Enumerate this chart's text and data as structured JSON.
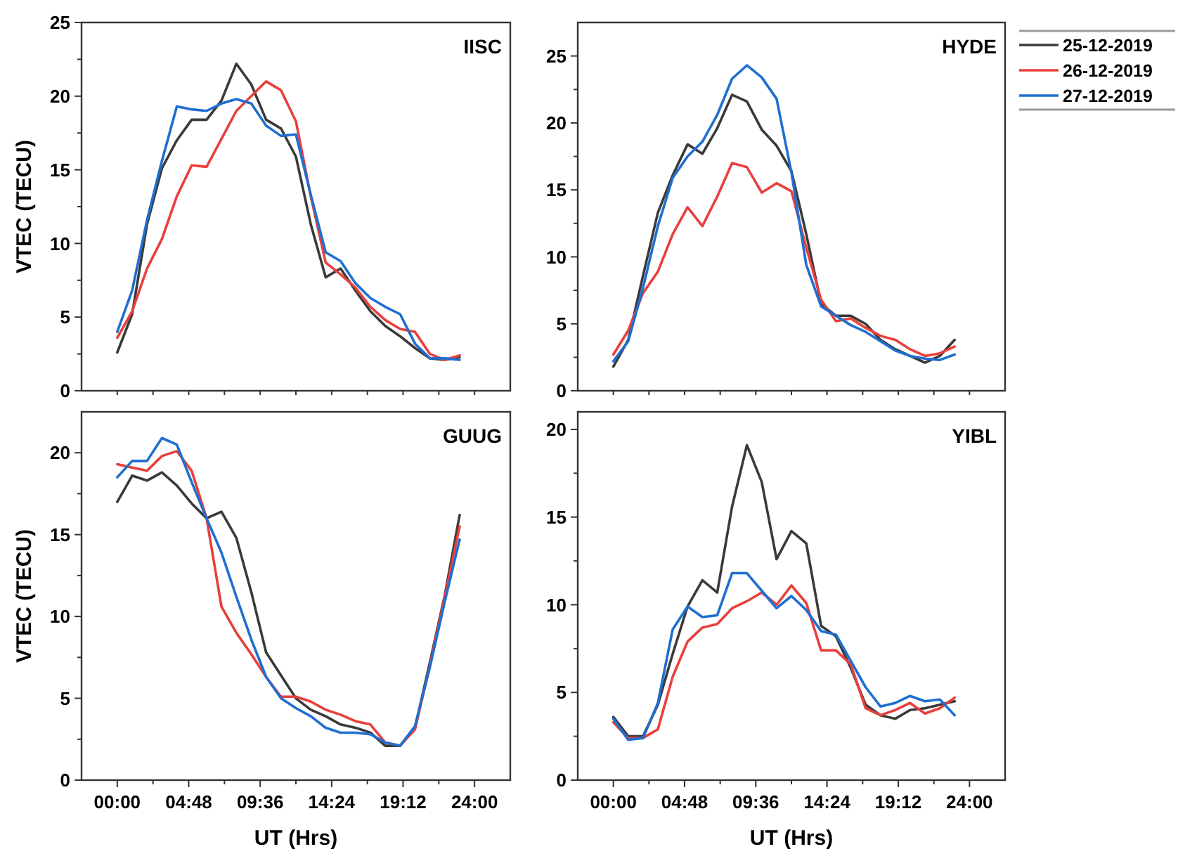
{
  "chart_data": [
    {
      "type": "line",
      "title": "IISC",
      "ylabel": "VTEC (TECU)",
      "x": [
        0,
        1,
        2,
        3,
        4,
        5,
        6,
        7,
        8,
        9,
        10,
        11,
        12,
        13,
        14,
        15,
        16,
        17,
        18,
        19,
        20,
        21,
        22,
        23
      ],
      "xlim": [
        -2.4,
        26.4
      ],
      "ylim": [
        0,
        25
      ],
      "xticks": [
        {
          "value": 0,
          "label": null
        },
        {
          "value": 2.4,
          "label": null
        },
        {
          "value": 4.8,
          "label": null
        },
        {
          "value": 7.2,
          "label": null
        },
        {
          "value": 9.6,
          "label": null
        },
        {
          "value": 12,
          "label": null
        },
        {
          "value": 14.4,
          "label": null
        },
        {
          "value": 16.8,
          "label": null
        },
        {
          "value": 19.2,
          "label": null
        },
        {
          "value": 21.6,
          "label": null
        },
        {
          "value": 24,
          "label": null
        }
      ],
      "yticks": [
        0,
        {
          "value": 2.5,
          "label": null
        },
        5,
        {
          "value": 7.5,
          "label": null
        },
        10,
        {
          "value": 12.5,
          "label": null
        },
        15,
        {
          "value": 17.5,
          "label": null
        },
        20,
        {
          "value": 22.5,
          "label": null
        },
        25
      ],
      "tick_labels": "y",
      "grid": false,
      "legend": false,
      "series": [
        {
          "color": "#3a3a3a",
          "values": [
            2.6,
            5.2,
            11.3,
            15.1,
            17.0,
            18.4,
            18.4,
            19.7,
            22.2,
            20.8,
            18.4,
            17.8,
            15.9,
            11.3,
            7.7,
            8.3,
            6.8,
            5.4,
            4.4,
            3.7,
            2.9,
            2.2,
            2.1,
            2.3
          ]
        },
        {
          "color": "#e8403c",
          "values": [
            3.6,
            5.4,
            8.3,
            10.3,
            13.2,
            15.3,
            15.2,
            17.1,
            19.0,
            20.0,
            21.0,
            20.4,
            18.3,
            13.2,
            8.7,
            7.9,
            7.0,
            5.7,
            4.8,
            4.2,
            4.0,
            2.5,
            2.1,
            2.4
          ]
        },
        {
          "color": "#1f6fd0",
          "values": [
            4.0,
            6.8,
            11.6,
            15.6,
            19.3,
            19.1,
            19.0,
            19.5,
            19.8,
            19.5,
            18.0,
            17.3,
            17.4,
            13.3,
            9.4,
            8.8,
            7.3,
            6.3,
            5.7,
            5.2,
            3.2,
            2.2,
            2.2,
            2.1
          ]
        }
      ]
    },
    {
      "type": "line",
      "title": "HYDE",
      "x": [
        0,
        1,
        2,
        3,
        4,
        5,
        6,
        7,
        8,
        9,
        10,
        11,
        12,
        13,
        14,
        15,
        16,
        17,
        18,
        19,
        20,
        21,
        22,
        23
      ],
      "xlim": [
        -2.4,
        26.4
      ],
      "ylim": [
        0,
        27.5
      ],
      "xticks": [
        {
          "value": 0,
          "label": null
        },
        {
          "value": 2.4,
          "label": null
        },
        {
          "value": 4.8,
          "label": null
        },
        {
          "value": 7.2,
          "label": null
        },
        {
          "value": 9.6,
          "label": null
        },
        {
          "value": 12,
          "label": null
        },
        {
          "value": 14.4,
          "label": null
        },
        {
          "value": 16.8,
          "label": null
        },
        {
          "value": 19.2,
          "label": null
        },
        {
          "value": 21.6,
          "label": null
        },
        {
          "value": 24,
          "label": null
        }
      ],
      "yticks": [
        0,
        {
          "value": 2.5,
          "label": null
        },
        5,
        {
          "value": 7.5,
          "label": null
        },
        10,
        {
          "value": 12.5,
          "label": null
        },
        15,
        {
          "value": 17.5,
          "label": null
        },
        20,
        {
          "value": 22.5,
          "label": null
        },
        25
      ],
      "tick_labels": "y",
      "grid": false,
      "legend": "right",
      "series": [
        {
          "name": "25-12-2019",
          "color": "#3a3a3a",
          "values": [
            1.8,
            3.8,
            8.6,
            13.3,
            16.1,
            18.4,
            17.7,
            19.6,
            22.1,
            21.6,
            19.5,
            18.3,
            16.4,
            11.7,
            6.5,
            5.6,
            5.6,
            5.0,
            3.8,
            3.1,
            2.6,
            2.1,
            2.6,
            3.8
          ]
        },
        {
          "name": "26-12-2019",
          "color": "#e8403c",
          "values": [
            2.7,
            4.5,
            7.3,
            8.9,
            11.7,
            13.7,
            12.3,
            14.5,
            17.0,
            16.7,
            14.8,
            15.5,
            14.9,
            10.7,
            6.8,
            5.2,
            5.4,
            4.7,
            4.1,
            3.8,
            3.1,
            2.6,
            2.8,
            3.3
          ]
        },
        {
          "name": "27-12-2019",
          "color": "#1f6fd0",
          "values": [
            2.2,
            3.7,
            7.7,
            12.3,
            15.9,
            17.5,
            18.6,
            20.6,
            23.3,
            24.3,
            23.4,
            21.8,
            16.3,
            9.4,
            6.3,
            5.6,
            4.9,
            4.4,
            3.7,
            3.0,
            2.6,
            2.4,
            2.3,
            2.7
          ]
        }
      ]
    },
    {
      "type": "line",
      "title": "GUUG",
      "xlabel": "UT (Hrs)",
      "ylabel": "VTEC (TECU)",
      "x": [
        0,
        1,
        2,
        3,
        4,
        5,
        6,
        7,
        8,
        9,
        10,
        11,
        12,
        13,
        14,
        15,
        16,
        17,
        18,
        19,
        20,
        21,
        22,
        23
      ],
      "xlim": [
        -2.4,
        26.4
      ],
      "ylim": [
        0,
        22.5
      ],
      "xticks": [
        {
          "value": 0,
          "label": "00:00"
        },
        {
          "value": 2.4,
          "label": null
        },
        {
          "value": 4.8,
          "label": "04:48"
        },
        {
          "value": 7.2,
          "label": null
        },
        {
          "value": 9.6,
          "label": "09:36"
        },
        {
          "value": 12,
          "label": null
        },
        {
          "value": 14.4,
          "label": "14:24"
        },
        {
          "value": 16.8,
          "label": null
        },
        {
          "value": 19.2,
          "label": "19:12"
        },
        {
          "value": 21.6,
          "label": null
        },
        {
          "value": 24,
          "label": "24:00"
        }
      ],
      "yticks": [
        0,
        {
          "value": 2.5,
          "label": null
        },
        5,
        {
          "value": 7.5,
          "label": null
        },
        10,
        {
          "value": 12.5,
          "label": null
        },
        15,
        {
          "value": 17.5,
          "label": null
        },
        20
      ],
      "grid": false,
      "legend": false,
      "series": [
        {
          "color": "#3a3a3a",
          "values": [
            17.0,
            18.6,
            18.3,
            18.8,
            18.0,
            16.9,
            16.0,
            16.4,
            14.8,
            11.5,
            7.8,
            6.4,
            5.0,
            4.3,
            3.9,
            3.4,
            3.2,
            2.9,
            2.1,
            2.1,
            3.2,
            7.2,
            11.3,
            16.2
          ]
        },
        {
          "color": "#e8403c",
          "values": [
            19.3,
            19.1,
            18.9,
            19.8,
            20.1,
            18.9,
            16.0,
            10.6,
            9.0,
            7.7,
            6.3,
            5.1,
            5.1,
            4.8,
            4.3,
            4.0,
            3.6,
            3.4,
            2.3,
            2.1,
            3.1,
            7.0,
            11.2,
            15.5
          ]
        },
        {
          "color": "#1f6fd0",
          "values": [
            18.5,
            19.5,
            19.5,
            20.9,
            20.5,
            18.2,
            16.0,
            13.9,
            11.2,
            8.6,
            6.3,
            5.0,
            4.4,
            3.9,
            3.2,
            2.9,
            2.9,
            2.8,
            2.3,
            2.1,
            3.3,
            6.9,
            10.9,
            14.7
          ]
        }
      ]
    },
    {
      "type": "line",
      "title": "YIBL",
      "xlabel": "UT (Hrs)",
      "x": [
        0,
        1,
        2,
        3,
        4,
        5,
        6,
        7,
        8,
        9,
        10,
        11,
        12,
        13,
        14,
        15,
        16,
        17,
        18,
        19,
        20,
        21,
        22,
        23
      ],
      "xlim": [
        -2.4,
        26.4
      ],
      "ylim": [
        0,
        21
      ],
      "xticks": [
        {
          "value": 0,
          "label": "00:00"
        },
        {
          "value": 2.4,
          "label": null
        },
        {
          "value": 4.8,
          "label": "04:48"
        },
        {
          "value": 7.2,
          "label": null
        },
        {
          "value": 9.6,
          "label": "09:36"
        },
        {
          "value": 12,
          "label": null
        },
        {
          "value": 14.4,
          "label": "14:24"
        },
        {
          "value": 16.8,
          "label": null
        },
        {
          "value": 19.2,
          "label": "19:12"
        },
        {
          "value": 21.6,
          "label": null
        },
        {
          "value": 24,
          "label": "24:00"
        }
      ],
      "yticks": [
        0,
        {
          "value": 2.5,
          "label": null
        },
        5,
        {
          "value": 7.5,
          "label": null
        },
        10,
        {
          "value": 12.5,
          "label": null
        },
        15,
        {
          "value": 17.5,
          "label": null
        },
        20
      ],
      "grid": false,
      "legend": false,
      "series": [
        {
          "color": "#3a3a3a",
          "values": [
            3.6,
            2.5,
            2.5,
            4.3,
            7.2,
            9.9,
            11.4,
            10.7,
            15.6,
            19.1,
            17.0,
            12.6,
            14.2,
            13.5,
            8.8,
            8.2,
            6.4,
            4.3,
            3.7,
            3.5,
            4.0,
            4.1,
            4.3,
            4.5
          ]
        },
        {
          "color": "#e8403c",
          "values": [
            3.3,
            2.4,
            2.4,
            2.9,
            5.9,
            7.9,
            8.7,
            8.9,
            9.8,
            10.2,
            10.7,
            10.0,
            11.1,
            10.1,
            7.4,
            7.4,
            6.6,
            4.1,
            3.7,
            4.0,
            4.4,
            3.8,
            4.1,
            4.7
          ]
        },
        {
          "color": "#1f6fd0",
          "values": [
            3.5,
            2.3,
            2.4,
            4.4,
            8.6,
            9.9,
            9.3,
            9.4,
            11.8,
            11.8,
            10.8,
            9.8,
            10.5,
            9.7,
            8.5,
            8.3,
            6.8,
            5.3,
            4.2,
            4.4,
            4.8,
            4.5,
            4.6,
            3.7
          ]
        }
      ]
    }
  ]
}
